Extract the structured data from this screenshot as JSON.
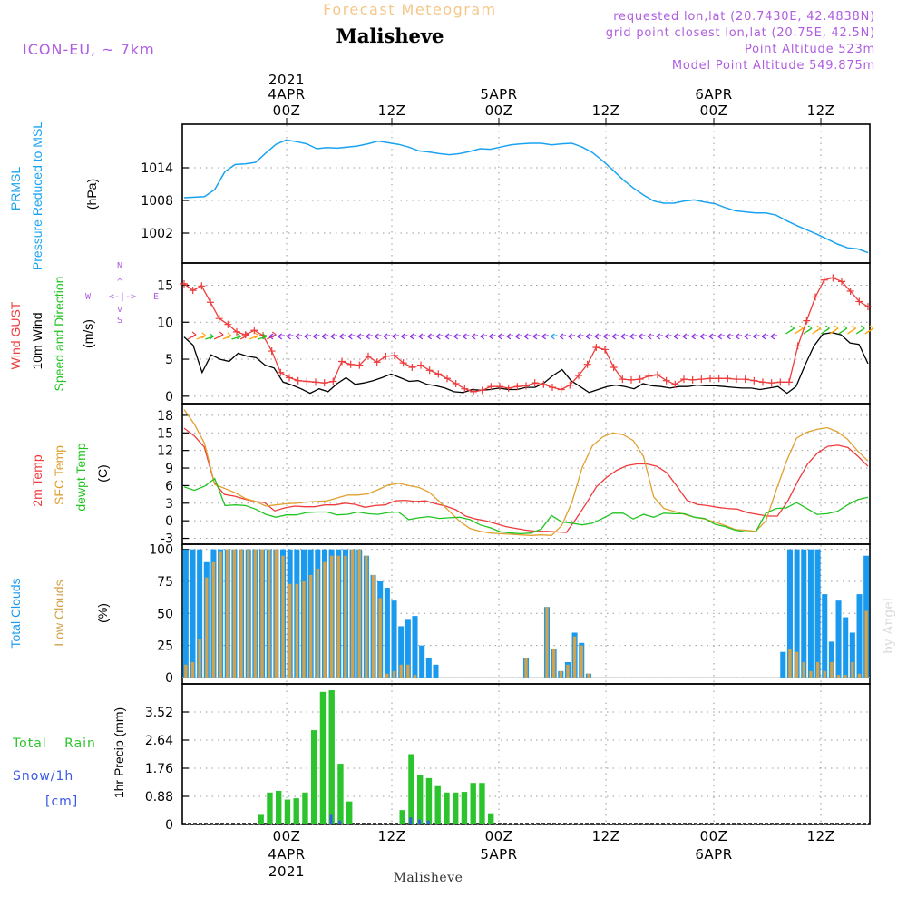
{
  "header": {
    "subtitle": "Forecast Meteogram",
    "station": "Malisheve",
    "model": "ICON-EU, ~ 7km",
    "requested": "requested lon,lat (20.7430E, 42.4838N)",
    "grid_point": "grid point closest lon,lat (20.75E, 42.5N)",
    "point_alt": "Point Altitude 523m",
    "model_alt": "Model Point Altitude 549.875m",
    "watermark": "by Angel",
    "footer_name": "Malisheve"
  },
  "colors": {
    "pressure": "#1aa3f0",
    "gust": "#ee3b3b",
    "wind": "#000000",
    "arrow_green": "#22c422",
    "arrow_purple": "#8a2be2",
    "t2m": "#ee3b3b",
    "sfc": "#e0a030",
    "dewpt": "#22c422",
    "total_clouds": "#1a9aee",
    "low_clouds": "#d4a24a",
    "rain": "#2cc42c",
    "snow": "#3a5ae8",
    "meta": "#b05ee0",
    "title_orange": "#f4c88a"
  },
  "time_axis": {
    "top_ticks": [
      {
        "i": 1,
        "line1": "2021",
        "line2": "4APR",
        "line3": "00Z"
      },
      {
        "i": 13,
        "line1": "",
        "line2": "",
        "line3": "12Z"
      },
      {
        "i": 25,
        "line1": "",
        "line2": "5APR",
        "line3": "00Z"
      },
      {
        "i": 37,
        "line1": "",
        "line2": "",
        "line3": "12Z"
      },
      {
        "i": 49,
        "line1": "",
        "line2": "6APR",
        "line3": "00Z"
      },
      {
        "i": 61,
        "line1": "",
        "line2": "",
        "line3": "12Z"
      }
    ],
    "bottom_ticks": [
      {
        "i": 1,
        "line1": "00Z",
        "line2": "4APR",
        "line3": "2021"
      },
      {
        "i": 13,
        "line1": "12Z",
        "line2": "",
        "line3": ""
      },
      {
        "i": 25,
        "line1": "00Z",
        "line2": "5APR",
        "line3": ""
      },
      {
        "i": 37,
        "line1": "12Z",
        "line2": "",
        "line3": ""
      },
      {
        "i": 49,
        "line1": "00Z",
        "line2": "6APR",
        "line3": ""
      },
      {
        "i": 61,
        "line1": "12Z",
        "line2": "",
        "line3": ""
      }
    ]
  },
  "chart_data": [
    {
      "type": "line",
      "id": "pressure",
      "title": "PRMSL Pressure Reduced to MSL",
      "label1": "PRMSL",
      "label2": "Pressure Reduced to MSL",
      "ylabel": "(hPa)",
      "ylim": [
        996.5,
        1022
      ],
      "yticks": [
        1002,
        1008,
        1014
      ],
      "series": [
        {
          "name": "PRMSL",
          "values": [
            1008.5,
            1008.6,
            1008.7,
            1010,
            1013.3,
            1014.6,
            1014.7,
            1015,
            1016.7,
            1018.3,
            1019.1,
            1018.8,
            1018.4,
            1017.5,
            1017.7,
            1017.6,
            1017.8,
            1018,
            1018.4,
            1018.9,
            1018.6,
            1018.3,
            1017.8,
            1017.1,
            1016.9,
            1016.6,
            1016.4,
            1016.6,
            1017,
            1017.5,
            1017.4,
            1017.8,
            1018.2,
            1018.4,
            1018.5,
            1018.5,
            1018.2,
            1018.4,
            1018.5,
            1017.8,
            1016.8,
            1015.3,
            1013.6,
            1011.8,
            1010.3,
            1009,
            1007.9,
            1007.5,
            1007.5,
            1007.9,
            1008.1,
            1007.7,
            1007.4,
            1006.7,
            1006.1,
            1005.9,
            1005.7,
            1005.7,
            1005.3,
            1004.3,
            1003.4,
            1002.6,
            1001.8,
            1000.9,
            1000,
            999.3,
            999.1,
            998.4
          ]
        }
      ]
    },
    {
      "type": "line",
      "id": "wind",
      "title": "Wind GUST / 10m Wind Speed and Direction",
      "label_gust": "Wind GUST",
      "label_wind": "10m Wind",
      "label_dir": "Speed and Direction",
      "ylabel": "(m/s)",
      "compass": {
        "n": "N",
        "s": "S",
        "w": "W",
        "e": "E"
      },
      "ylim": [
        -1,
        18
      ],
      "yticks": [
        0,
        5,
        10,
        15
      ],
      "series": [
        {
          "name": "Wind GUST",
          "values": [
            15.2,
            14.3,
            14.9,
            12.7,
            10.5,
            9.7,
            8.7,
            8.3,
            8.9,
            8.2,
            6.1,
            3.2,
            2.5,
            2.1,
            2,
            1.9,
            1.8,
            2,
            4.7,
            4.3,
            4.2,
            5.4,
            4.6,
            5.4,
            5.5,
            4.5,
            3.9,
            4.2,
            3.5,
            3,
            2.4,
            1.7,
            1,
            0.6,
            0.8,
            1.3,
            1.3,
            1.1,
            1.3,
            1.4,
            1.8,
            1.6,
            1.2,
            0.9,
            1.5,
            2.8,
            4.3,
            6.6,
            6.3,
            3.9,
            2.3,
            2.2,
            2.3,
            2.7,
            2.9,
            2.1,
            1.6,
            2.3,
            2.2,
            2.3,
            2.4,
            2.4,
            2.4,
            2.3,
            2.3,
            2.1,
            1.9,
            1.8,
            1.9,
            1.9,
            6.8,
            10.2,
            13.4,
            15.7,
            16,
            15.5,
            14.2,
            12.8,
            12.1
          ]
        },
        {
          "name": "10m Wind",
          "values": [
            8,
            6.9,
            3.2,
            5.6,
            5,
            4.7,
            5.8,
            5.4,
            5.2,
            4.2,
            3.8,
            1.9,
            1.5,
            1,
            0.4,
            1,
            0.6,
            1.7,
            2.5,
            1.6,
            1.8,
            2.1,
            2.5,
            3,
            2.5,
            2,
            2.1,
            1.6,
            1.4,
            1.1,
            0.6,
            0.5,
            0.9,
            0.8,
            0.9,
            1.1,
            0.9,
            0.9,
            1.2,
            1.2,
            1.8,
            2.8,
            3.6,
            2.1,
            1.3,
            0.5,
            0.9,
            1.3,
            1.5,
            1.3,
            1,
            1.7,
            1.4,
            1.3,
            1.1,
            1.3,
            1.3,
            1.5,
            1.4,
            1.4,
            1.3,
            1.2,
            1.1,
            1.1,
            0.9,
            1.1,
            1.3,
            0.4,
            1.3,
            4.2,
            6.8,
            8.4,
            8.6,
            8.3,
            7.2,
            7,
            4.4
          ]
        }
      ],
      "direction_arrows": {
        "green_indices": [
          2,
          3,
          4,
          5,
          6,
          7,
          8,
          9,
          32,
          65,
          66,
          67,
          68,
          69
        ],
        "purple_start": 10,
        "purple_end": 64
      }
    },
    {
      "type": "line",
      "id": "temperature",
      "title": "2m Temp / SFC Temp / dewpt Temp",
      "label_t2m": "2m Temp",
      "label_sfc": "SFC Temp",
      "label_dew": "dewpt Temp",
      "ylabel": "(C)",
      "ylim": [
        -4,
        20
      ],
      "yticks": [
        -3,
        0,
        3,
        6,
        9,
        12,
        15,
        18
      ],
      "series": [
        {
          "name": "2m Temp",
          "values": [
            15.8,
            14.5,
            12.6,
            6.5,
            4.5,
            4.2,
            3.7,
            3.3,
            3.1,
            1.7,
            2.2,
            2.5,
            2.4,
            2.4,
            2.7,
            2.7,
            3,
            2.8,
            2.3,
            2.6,
            2.7,
            3.4,
            3.5,
            3.3,
            3.4,
            2.9,
            2.5,
            1.9,
            0.8,
            0.3,
            0,
            -0.5,
            -1,
            -1.3,
            -1.6,
            -1.8,
            -1.8,
            -1.9,
            -2,
            0.4,
            3,
            5.8,
            7.4,
            8.6,
            9.4,
            9.7,
            9.7,
            9.3,
            8.2,
            5.9,
            3.5,
            2.8,
            2.6,
            2.3,
            2.1,
            2,
            1.4,
            1.1,
            0.8,
            0.8,
            3.3,
            6.7,
            9.7,
            11.6,
            12.7,
            12.9,
            12.5,
            11,
            9.3
          ]
        },
        {
          "name": "SFC Temp",
          "values": [
            19,
            16.5,
            13.2,
            6.2,
            5.5,
            4.8,
            3.8,
            3.3,
            2.5,
            2.7,
            2.9,
            3,
            3.2,
            3.3,
            3.4,
            3.9,
            4.4,
            4.4,
            4.6,
            5.3,
            6.1,
            6.4,
            6,
            5.7,
            4.9,
            3.3,
            1.6,
            -0.1,
            -1.3,
            -1.8,
            -2.1,
            -2.2,
            -2.3,
            -2.4,
            -2.5,
            -2.4,
            -2.5,
            -0.8,
            3.2,
            9.1,
            12.8,
            14.3,
            15,
            14.7,
            13.7,
            11,
            4.1,
            2.1,
            1.6,
            1.1,
            0.6,
            0.3,
            -0.2,
            -0.8,
            -1.5,
            -1.6,
            -1.8,
            0,
            5.2,
            10.1,
            14.1,
            15.1,
            15.6,
            15.9,
            15.2,
            13.9,
            11.9,
            10.2
          ]
        },
        {
          "name": "dewpt Temp",
          "values": [
            5.8,
            5.2,
            5.9,
            7.2,
            2.6,
            2.7,
            2.6,
            2,
            1.1,
            0.6,
            1,
            1,
            1.4,
            1.5,
            1.5,
            1,
            1.1,
            1.5,
            1.2,
            1.1,
            1.4,
            1.5,
            0.2,
            0.5,
            0.7,
            0.4,
            0.5,
            0.6,
            0.2,
            -0.7,
            -1.2,
            -1.9,
            -2.1,
            -2.2,
            -2.1,
            -1.4,
            0.9,
            -0.2,
            -0.4,
            -0.7,
            -0.4,
            0.4,
            1.3,
            1.3,
            0.3,
            1.1,
            0.6,
            1.3,
            1.2,
            1.2,
            0.6,
            0.4,
            -0.6,
            -1,
            -1.6,
            -1.9,
            -1.9,
            1.3,
            2.1,
            2.2,
            3.1,
            2.1,
            1.1,
            1.2,
            1.6,
            2.7,
            3.6,
            4
          ]
        }
      ]
    },
    {
      "type": "bar",
      "id": "clouds",
      "title": "Total Clouds / Low Clouds",
      "label_total": "Total Clouds",
      "label_low": "Low Clouds",
      "ylabel": "(%)",
      "ylim": [
        -5,
        104
      ],
      "yticks": [
        0,
        25,
        50,
        75,
        100
      ],
      "series": [
        {
          "name": "Total Clouds",
          "values": [
            100,
            100,
            100,
            90,
            100,
            100,
            100,
            100,
            100,
            100,
            100,
            100,
            100,
            100,
            100,
            100,
            100,
            100,
            100,
            100,
            100,
            100,
            100,
            100,
            100,
            100,
            95,
            80,
            75,
            70,
            60,
            40,
            45,
            48,
            25,
            15,
            10,
            0,
            0,
            0,
            0,
            0,
            0,
            0,
            0,
            0,
            0,
            0,
            0,
            15,
            0,
            0,
            55,
            22,
            5,
            12,
            35,
            27,
            3,
            0,
            0,
            0,
            0,
            0,
            0,
            0,
            0,
            0,
            0,
            0,
            0,
            0,
            0,
            0,
            0,
            0,
            0,
            0,
            0,
            0,
            0,
            0,
            0,
            0,
            0,
            0,
            20,
            100,
            100,
            100,
            100,
            100,
            65,
            28,
            60,
            47,
            35,
            65,
            95
          ]
        },
        {
          "name": "Low Clouds",
          "values": [
            10,
            12,
            30,
            78,
            90,
            98,
            100,
            100,
            100,
            100,
            100,
            100,
            100,
            100,
            95,
            73,
            73,
            75,
            80,
            85,
            90,
            95,
            95,
            95,
            100,
            100,
            95,
            80,
            62,
            3,
            5,
            10,
            10,
            2,
            0,
            0,
            0,
            0,
            0,
            0,
            0,
            0,
            0,
            0,
            0,
            0,
            0,
            0,
            0,
            15,
            0,
            0,
            55,
            22,
            5,
            10,
            32,
            25,
            3,
            0,
            0,
            0,
            0,
            0,
            0,
            0,
            0,
            0,
            0,
            0,
            0,
            0,
            0,
            0,
            0,
            0,
            0,
            0,
            0,
            0,
            0,
            0,
            0,
            0,
            0,
            0,
            0,
            22,
            20,
            12,
            5,
            12,
            5,
            12,
            2,
            2,
            12,
            3,
            52
          ]
        }
      ]
    },
    {
      "type": "bar",
      "id": "precip",
      "title": "Total Rain / Snow 1hr Precip",
      "label_rain": "Total Rain",
      "label_snow": "Snow/1h",
      "label_cm": "[cm]",
      "ylabel": "1hr Precip (mm)",
      "ylim": [
        0,
        4.4
      ],
      "yticks": [
        0,
        0.88,
        1.76,
        2.64,
        3.52
      ],
      "series": [
        {
          "name": "Total Rain",
          "values": [
            0,
            0,
            0,
            0,
            0,
            0,
            0.3,
            1,
            1.05,
            0.78,
            0.82,
            1,
            2.95,
            4.15,
            4.2,
            1.9,
            0.72,
            0,
            0,
            0,
            0,
            0,
            0.45,
            2.2,
            1.55,
            1.45,
            1.2,
            1,
            1,
            1.02,
            1.3,
            1.3,
            0.35,
            0,
            0
          ]
        },
        {
          "name": "Snow/1h",
          "values": [
            0,
            0,
            0,
            0,
            0,
            0,
            0,
            0,
            0,
            0,
            0,
            0,
            0,
            0,
            0.3,
            0.12,
            0,
            0,
            0,
            0,
            0,
            0,
            0,
            0.22,
            0.15,
            0.12,
            0,
            0,
            0,
            0,
            0,
            0,
            0,
            0,
            0
          ]
        }
      ]
    }
  ]
}
